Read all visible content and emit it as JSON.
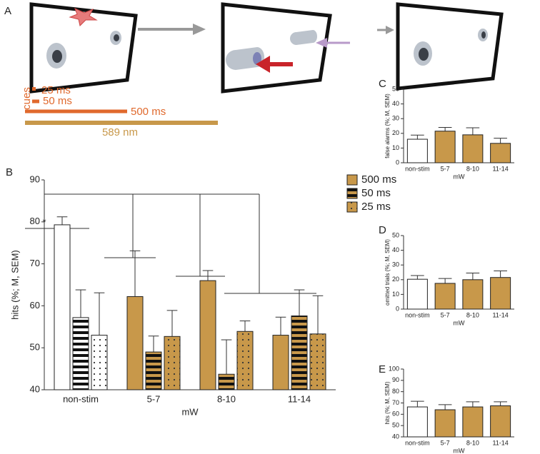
{
  "panels": [
    "A",
    "B",
    "C",
    "D",
    "E"
  ],
  "diagram": {
    "cues": "cues",
    "short": "25 ms",
    "medium": "50 ms",
    "long": "500 ms",
    "light": "589 nm"
  },
  "chart_data": [
    {
      "type": "bar",
      "ylabel": "hits (%; M, SEM)",
      "xlabel": "mW",
      "categories": [
        "non-stim",
        "5-7",
        "8-10",
        "11-14"
      ],
      "ylim": [
        40,
        90
      ],
      "yticks": [
        40,
        50,
        60,
        70,
        80,
        90
      ],
      "legend": "right",
      "annotations": [
        "*"
      ],
      "series": [
        {
          "name": "500 ms",
          "color": "#c8984a",
          "pattern": "solid",
          "point_colors": [
            "#ffffff",
            "#c8984a",
            "#c8984a",
            "#c8984a"
          ],
          "values": [
            79.3,
            62.2,
            66.0,
            53.0
          ],
          "errors": [
            1.9,
            10.9,
            2.4,
            4.3
          ]
        },
        {
          "name": "50 ms",
          "color": "#c8984a",
          "pattern": "stripes",
          "point_colors": [
            "#ffffff",
            "#c8984a",
            "#c8984a",
            "#c8984a"
          ],
          "values": [
            57.2,
            49.0,
            43.7,
            57.6
          ],
          "errors": [
            6.6,
            3.8,
            8.2,
            6.2
          ]
        },
        {
          "name": "25 ms",
          "color": "#c8984a",
          "pattern": "dots",
          "point_colors": [
            "#ffffff",
            "#c8984a",
            "#c8984a",
            "#c8984a"
          ],
          "values": [
            53.0,
            52.7,
            53.9,
            53.3
          ],
          "errors": [
            10.1,
            6.2,
            2.5,
            9.1
          ]
        }
      ]
    },
    {
      "type": "bar",
      "ylabel": "false alarms (%; M, SEM)",
      "xlabel": "mW",
      "categories": [
        "non-stim",
        "5-7",
        "8-10",
        "11-14"
      ],
      "ylim": [
        0,
        50
      ],
      "yticks": [
        0,
        10,
        20,
        30,
        40,
        50
      ],
      "series": [
        {
          "color": "#c8984a",
          "pattern": "solid",
          "point_colors": [
            "#ffffff",
            "#c8984a",
            "#c8984a",
            "#c8984a"
          ],
          "values": [
            16.0,
            21.5,
            19.0,
            13.2
          ],
          "errors": [
            2.8,
            2.5,
            4.8,
            3.5
          ]
        }
      ]
    },
    {
      "type": "bar",
      "ylabel": "omitted trials (%; M, SEM)",
      "xlabel": "mW",
      "categories": [
        "non-stim",
        "5-7",
        "8-10",
        "11-14"
      ],
      "ylim": [
        0,
        50
      ],
      "yticks": [
        0,
        10,
        20,
        30,
        40,
        50
      ],
      "series": [
        {
          "color": "#c8984a",
          "pattern": "solid",
          "point_colors": [
            "#ffffff",
            "#c8984a",
            "#c8984a",
            "#c8984a"
          ],
          "values": [
            20.3,
            17.5,
            20.0,
            21.5
          ],
          "errors": [
            2.5,
            3.3,
            4.5,
            4.5
          ]
        }
      ]
    },
    {
      "type": "bar",
      "ylabel": "hits (%; M, SEM)",
      "xlabel": "mW",
      "categories": [
        "non-stim",
        "5-7",
        "8-10",
        "11-14"
      ],
      "ylim": [
        40,
        100
      ],
      "yticks": [
        40,
        50,
        60,
        70,
        80,
        90,
        100
      ],
      "series": [
        {
          "color": "#c8984a",
          "pattern": "solid",
          "point_colors": [
            "#ffffff",
            "#c8984a",
            "#c8984a",
            "#c8984a"
          ],
          "values": [
            66.5,
            64.0,
            66.5,
            67.5
          ],
          "errors": [
            5.0,
            4.5,
            4.5,
            3.5
          ]
        }
      ]
    }
  ]
}
